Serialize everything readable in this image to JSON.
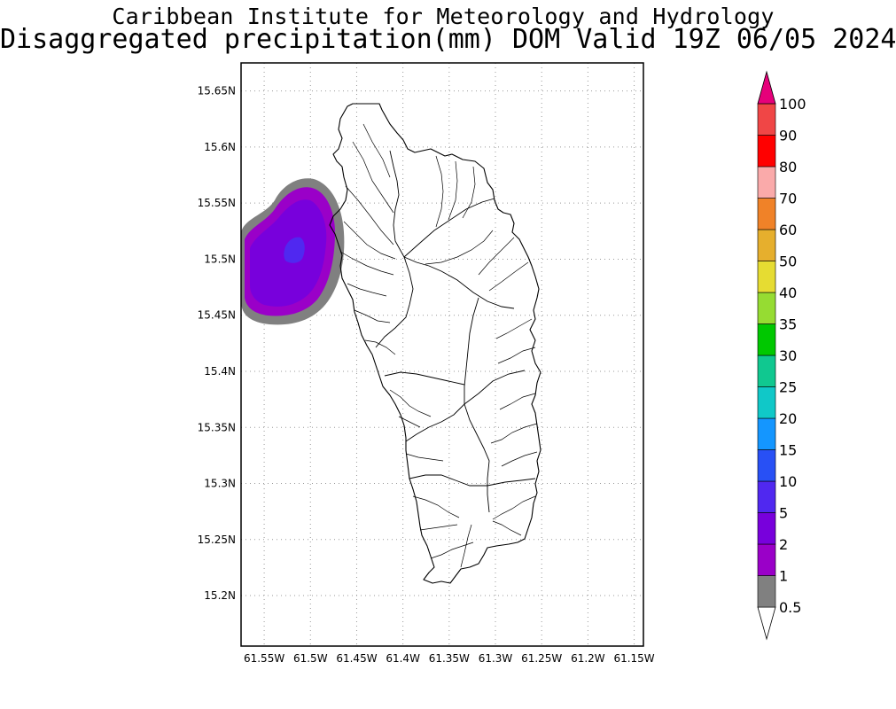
{
  "title": {
    "line1": "Caribbean Institute for Meteorology and Hydrology",
    "line2": "Disaggregated precipitation(mm) DOM Valid 19Z 06/05 2024"
  },
  "axes": {
    "lon_ticks": [
      "61.55W",
      "61.5W",
      "61.45W",
      "61.4W",
      "61.35W",
      "61.3W",
      "61.25W",
      "61.2W",
      "61.15W"
    ],
    "lat_ticks": [
      "15.65N",
      "15.6N",
      "15.55N",
      "15.5N",
      "15.45N",
      "15.4N",
      "15.35N",
      "15.3N",
      "15.25N",
      "15.2N"
    ],
    "lon_values": [
      -61.55,
      -61.5,
      -61.45,
      -61.4,
      -61.35,
      -61.3,
      -61.25,
      -61.2,
      -61.15
    ],
    "lat_values": [
      15.65,
      15.6,
      15.55,
      15.5,
      15.45,
      15.4,
      15.35,
      15.3,
      15.25,
      15.2
    ],
    "lon_range": [
      -61.575,
      -61.14
    ],
    "lat_range": [
      15.155,
      15.675
    ],
    "grid": true
  },
  "colorbar": {
    "labels": [
      "0.5",
      "1",
      "2",
      "5",
      "10",
      "15",
      "20",
      "25",
      "30",
      "35",
      "40",
      "50",
      "60",
      "70",
      "80",
      "90",
      "100"
    ],
    "colors": [
      "#808080",
      "#9a00c8",
      "#7800dc",
      "#5028f0",
      "#2850f5",
      "#1496ff",
      "#10c8c8",
      "#10c890",
      "#00c800",
      "#96dc32",
      "#e6dc32",
      "#e6af2d",
      "#f08228",
      "#faaaaa",
      "#ff0000",
      "#f04646",
      "#e6007a"
    ]
  },
  "precip_cells": [
    {
      "level": "0.5",
      "color": "#808080"
    },
    {
      "level": "1",
      "color": "#9a00c8"
    },
    {
      "level": "2",
      "color": "#7800dc"
    },
    {
      "level": "5",
      "color": "#5028f0"
    }
  ]
}
